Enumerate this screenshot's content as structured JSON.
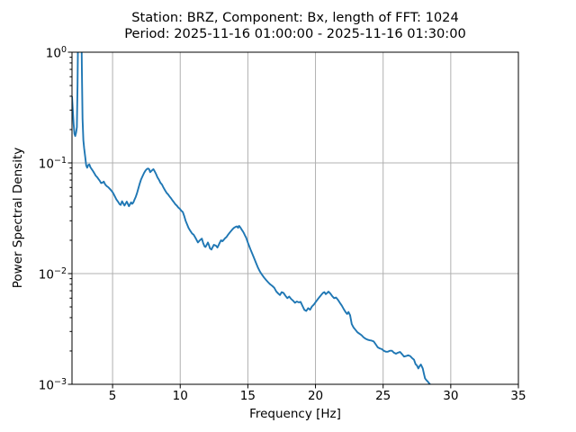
{
  "figure": {
    "title_line1": "Station: BRZ, Component: Bx, length of FFT: 1024",
    "title_line2": "Period: 2025-11-16 01:00:00 - 2025-11-16 01:30:00"
  },
  "chart_data": {
    "type": "line",
    "title": "Station: BRZ, Component: Bx, length of FFT: 1024\nPeriod: 2025-11-16 01:00:00 - 2025-11-16 01:30:00",
    "xlabel": "Frequency [Hz]",
    "ylabel": "Power Spectral Density",
    "xscale": "linear",
    "yscale": "log",
    "xlim": [
      2,
      35
    ],
    "ylim": [
      0.001,
      1.0
    ],
    "grid": true,
    "legend_position": "none",
    "line_color": "#1f77b4",
    "grid_color": "#b0b0b0",
    "spine_color": "#000000",
    "background_color": "#ffffff",
    "xticks": [
      {
        "value": 5,
        "label": "5"
      },
      {
        "value": 10,
        "label": "10"
      },
      {
        "value": 15,
        "label": "15"
      },
      {
        "value": 20,
        "label": "20"
      },
      {
        "value": 25,
        "label": "25"
      },
      {
        "value": 30,
        "label": "30"
      },
      {
        "value": 35,
        "label": "35"
      }
    ],
    "yticks": [
      {
        "value": 1.0,
        "base": "10",
        "exp": "0"
      },
      {
        "value": 0.1,
        "base": "10",
        "exp": "−1"
      },
      {
        "value": 0.01,
        "base": "10",
        "exp": "−2"
      },
      {
        "value": 0.001,
        "base": "10",
        "exp": "−3"
      }
    ],
    "series": [
      {
        "name": "Power Spectral Density, Bx",
        "x": [
          2.0,
          2.06,
          2.12,
          2.18,
          2.24,
          2.3,
          2.36,
          2.41,
          2.46,
          2.52,
          2.58,
          2.64,
          2.69,
          2.73,
          2.78,
          2.84,
          2.9,
          2.97,
          3.05,
          3.12,
          3.2,
          3.28,
          3.36,
          3.45,
          3.55,
          3.65,
          3.75,
          3.85,
          3.95,
          4.05,
          4.15,
          4.25,
          4.35,
          4.45,
          4.56,
          4.68,
          4.8,
          4.92,
          5.03,
          5.15,
          5.28,
          5.4,
          5.52,
          5.6,
          5.7,
          5.79,
          5.88,
          5.97,
          6.05,
          6.13,
          6.21,
          6.29,
          6.37,
          6.45,
          6.53,
          6.62,
          6.72,
          6.82,
          6.9,
          6.99,
          7.1,
          7.22,
          7.33,
          7.44,
          7.54,
          7.62,
          7.7,
          7.78,
          7.86,
          7.94,
          8.02,
          8.11,
          8.21,
          8.32,
          8.43,
          8.54,
          8.65,
          8.76,
          8.88,
          9.0,
          9.1,
          9.2,
          9.31,
          9.42,
          9.53,
          9.64,
          9.75,
          9.86,
          9.97,
          10.08,
          10.19,
          10.3,
          10.4,
          10.5,
          10.62,
          10.75,
          10.88,
          11.0,
          11.16,
          11.31,
          11.47,
          11.6,
          11.7,
          11.8,
          11.87,
          11.97,
          12.05,
          12.13,
          12.2,
          12.31,
          12.4,
          12.49,
          12.57,
          12.64,
          12.75,
          12.84,
          12.93,
          13.02,
          13.12,
          13.22,
          13.32,
          13.42,
          13.53,
          13.64,
          13.75,
          13.86,
          13.97,
          14.08,
          14.19,
          14.28,
          14.35,
          14.45,
          14.53,
          14.62,
          14.7,
          14.78,
          14.86,
          15.02,
          15.19,
          15.32,
          15.46,
          15.59,
          15.75,
          15.9,
          16.05,
          16.2,
          16.35,
          16.5,
          16.65,
          16.8,
          16.95,
          17.1,
          17.25,
          17.37,
          17.5,
          17.64,
          17.78,
          17.92,
          18.06,
          18.2,
          18.34,
          18.48,
          18.62,
          18.76,
          18.9,
          19.04,
          19.18,
          19.32,
          19.46,
          19.6,
          19.74,
          19.88,
          20.02,
          20.16,
          20.3,
          20.44,
          20.56,
          20.66,
          20.76,
          20.86,
          20.96,
          21.1,
          21.24,
          21.38,
          21.52,
          21.66,
          21.8,
          21.94,
          22.08,
          22.22,
          22.34,
          22.44,
          22.56,
          22.68,
          22.82,
          22.96,
          23.1,
          23.24,
          23.4,
          23.55,
          23.7,
          23.85,
          24.0,
          24.15,
          24.3,
          24.45,
          24.6,
          24.75,
          24.9,
          25.05,
          25.2,
          25.35,
          25.5,
          25.65,
          25.8,
          25.95,
          26.1,
          26.25,
          26.4,
          26.55,
          26.7,
          26.85,
          27.0,
          27.15,
          27.28,
          27.4,
          27.5,
          27.6,
          27.7,
          27.79,
          27.86,
          27.93,
          28.02,
          28.1,
          28.2,
          28.3,
          28.4,
          28.5
        ],
        "y": [
          0.4,
          0.3,
          0.225,
          0.183,
          0.175,
          0.187,
          0.21,
          0.5,
          2.0,
          4.0,
          5.0,
          4.5,
          2.0,
          0.7,
          0.25,
          0.16,
          0.135,
          0.115,
          0.095,
          0.0905,
          0.0955,
          0.097,
          0.0915,
          0.088,
          0.0845,
          0.0807,
          0.0768,
          0.0745,
          0.0716,
          0.069,
          0.0657,
          0.0663,
          0.0678,
          0.064,
          0.0618,
          0.0603,
          0.0582,
          0.056,
          0.0537,
          0.0503,
          0.0468,
          0.0447,
          0.0424,
          0.0417,
          0.045,
          0.0431,
          0.0412,
          0.043,
          0.0447,
          0.0426,
          0.0406,
          0.0423,
          0.044,
          0.0427,
          0.0438,
          0.0465,
          0.0496,
          0.054,
          0.0585,
          0.064,
          0.0705,
          0.076,
          0.0812,
          0.0855,
          0.088,
          0.089,
          0.0878,
          0.0825,
          0.0843,
          0.0862,
          0.0877,
          0.084,
          0.0795,
          0.074,
          0.0704,
          0.066,
          0.0638,
          0.06,
          0.0565,
          0.0535,
          0.052,
          0.05,
          0.0481,
          0.046,
          0.0442,
          0.0423,
          0.0411,
          0.0395,
          0.0385,
          0.037,
          0.036,
          0.033,
          0.03,
          0.028,
          0.0258,
          0.0243,
          0.023,
          0.0224,
          0.0207,
          0.0191,
          0.0201,
          0.0207,
          0.0188,
          0.0176,
          0.0174,
          0.0183,
          0.0191,
          0.018,
          0.0169,
          0.0165,
          0.0174,
          0.0182,
          0.018,
          0.0179,
          0.0172,
          0.0181,
          0.0191,
          0.02,
          0.0196,
          0.0202,
          0.0209,
          0.0214,
          0.0224,
          0.0233,
          0.0242,
          0.0251,
          0.0259,
          0.0264,
          0.0267,
          0.0259,
          0.027,
          0.0261,
          0.0251,
          0.0242,
          0.0233,
          0.0222,
          0.0213,
          0.0188,
          0.0166,
          0.0152,
          0.0138,
          0.0126,
          0.0113,
          0.0104,
          0.00975,
          0.0092,
          0.00875,
          0.00835,
          0.008,
          0.00775,
          0.00745,
          0.0069,
          0.0066,
          0.0064,
          0.0068,
          0.00668,
          0.0063,
          0.006,
          0.0062,
          0.0059,
          0.0057,
          0.00545,
          0.0056,
          0.0055,
          0.00555,
          0.0051,
          0.0047,
          0.0046,
          0.00487,
          0.00472,
          0.00505,
          0.00525,
          0.00555,
          0.00585,
          0.00615,
          0.00645,
          0.0067,
          0.0068,
          0.00652,
          0.00668,
          0.00687,
          0.0066,
          0.00625,
          0.006,
          0.00608,
          0.0058,
          0.00545,
          0.00515,
          0.0048,
          0.0045,
          0.00432,
          0.0045,
          0.0042,
          0.0035,
          0.00325,
          0.0031,
          0.00295,
          0.00287,
          0.00278,
          0.00266,
          0.00258,
          0.00253,
          0.0025,
          0.00248,
          0.00244,
          0.0023,
          0.00216,
          0.00211,
          0.00208,
          0.00201,
          0.00197,
          0.00197,
          0.00201,
          0.00201,
          0.00193,
          0.00189,
          0.00193,
          0.00196,
          0.00187,
          0.00178,
          0.0018,
          0.00183,
          0.0018,
          0.00172,
          0.00167,
          0.00152,
          0.00148,
          0.00139,
          0.00146,
          0.00151,
          0.00145,
          0.00139,
          0.00124,
          0.00113,
          0.00109,
          0.00106,
          0.00102,
          0.00099
        ]
      }
    ]
  }
}
